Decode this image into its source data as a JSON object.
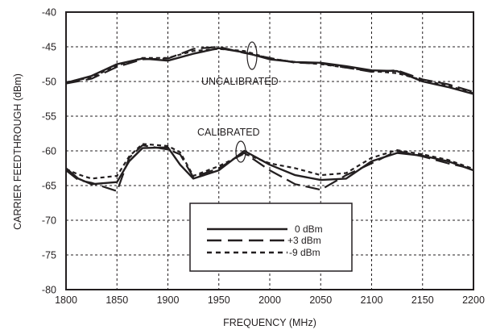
{
  "chart_data": {
    "type": "line",
    "title": "",
    "xlabel": "FREQUENCY (MHz)",
    "ylabel": "CARRIER FEEDTHROUGH (dBm)",
    "xlim": [
      1800,
      2200
    ],
    "ylim": [
      -80,
      -40
    ],
    "xticks": [
      1800,
      1850,
      1900,
      1950,
      2000,
      2050,
      2100,
      2150,
      2200
    ],
    "yticks": [
      -40,
      -45,
      -50,
      -55,
      -60,
      -65,
      -70,
      -75,
      -80
    ],
    "grid": true,
    "legend_position": "bottom-center",
    "annotations": [
      "UNCALIBRATED",
      "CALIBRATED"
    ],
    "series": [
      {
        "name": "0 dBm",
        "style": "solid",
        "group": "UNCALIBRATED",
        "x": [
          1800,
          1825,
          1850,
          1875,
          1900,
          1925,
          1950,
          1975,
          2000,
          2025,
          2050,
          2075,
          2100,
          2125,
          2150,
          2175,
          2200
        ],
        "y": [
          -50.2,
          -49.2,
          -47.5,
          -46.7,
          -47.0,
          -46.0,
          -45.2,
          -45.8,
          -46.8,
          -47.2,
          -47.3,
          -47.8,
          -48.4,
          -48.5,
          -50.0,
          -50.8,
          -51.8
        ]
      },
      {
        "name": "+3 dBm",
        "style": "dashed",
        "group": "UNCALIBRATED",
        "x": [
          1800,
          1825,
          1850,
          1875,
          1900,
          1925,
          1950,
          1975,
          2000,
          2025,
          2050,
          2075,
          2100,
          2125,
          2150,
          2175,
          2200
        ],
        "y": [
          -50.3,
          -49.6,
          -47.9,
          -46.8,
          -46.7,
          -45.3,
          -45.0,
          -45.9,
          -46.6,
          -47.3,
          -47.4,
          -48.0,
          -48.6,
          -48.4,
          -49.7,
          -50.4,
          -51.5
        ]
      },
      {
        "name": "-9 dBm",
        "style": "dotted",
        "group": "UNCALIBRATED",
        "x": [
          1800,
          1825,
          1850,
          1875,
          1900,
          1925,
          1950,
          1975,
          2000,
          2025,
          2050,
          2075,
          2100,
          2125,
          2150,
          2175,
          2200
        ],
        "y": [
          -50.1,
          -49.4,
          -47.7,
          -46.6,
          -46.6,
          -45.6,
          -45.3,
          -45.6,
          -46.7,
          -47.2,
          -47.5,
          -48.0,
          -48.5,
          -48.8,
          -49.8,
          -50.6,
          -51.7
        ]
      },
      {
        "name": "0 dBm",
        "style": "solid",
        "group": "CALIBRATED",
        "x": [
          1800,
          1812,
          1825,
          1850,
          1862,
          1875,
          1900,
          1912,
          1925,
          1950,
          1975,
          2000,
          2025,
          2050,
          2075,
          2100,
          2125,
          2150,
          2175,
          2200
        ],
        "y": [
          -62.5,
          -64.0,
          -64.8,
          -64.5,
          -61.5,
          -59.6,
          -59.5,
          -62.0,
          -64.0,
          -62.8,
          -60.0,
          -62.0,
          -63.5,
          -64.2,
          -64.0,
          -61.5,
          -60.3,
          -60.7,
          -61.5,
          -62.8
        ]
      },
      {
        "name": "+3 dBm",
        "style": "dashed",
        "group": "CALIBRATED",
        "x": [
          1800,
          1812,
          1825,
          1850,
          1862,
          1875,
          1900,
          1912,
          1925,
          1950,
          1975,
          2000,
          2025,
          2050,
          2075,
          2100,
          2125,
          2150,
          2175,
          2200
        ],
        "y": [
          -62.8,
          -64.2,
          -64.6,
          -65.8,
          -61.0,
          -59.2,
          -59.8,
          -60.5,
          -63.8,
          -62.5,
          -60.3,
          -62.8,
          -64.8,
          -65.6,
          -63.5,
          -61.8,
          -60.0,
          -60.8,
          -61.8,
          -62.6
        ]
      },
      {
        "name": "-9 dBm",
        "style": "dotted",
        "group": "CALIBRATED",
        "x": [
          1800,
          1812,
          1825,
          1850,
          1862,
          1875,
          1900,
          1912,
          1925,
          1950,
          1975,
          2000,
          2025,
          2050,
          2075,
          2100,
          2125,
          2150,
          2175,
          2200
        ],
        "y": [
          -62.6,
          -63.4,
          -64.0,
          -63.6,
          -60.8,
          -59.0,
          -59.3,
          -60.2,
          -63.6,
          -62.2,
          -60.4,
          -61.8,
          -62.5,
          -63.5,
          -63.2,
          -61.0,
          -59.9,
          -60.5,
          -61.3,
          -62.6
        ]
      }
    ]
  },
  "legend": [
    {
      "label": "0 dBm",
      "style": "solid"
    },
    {
      "label": "+3 dBm",
      "style": "dashed"
    },
    {
      "label": "-9 dBm",
      "style": "dotted"
    }
  ]
}
